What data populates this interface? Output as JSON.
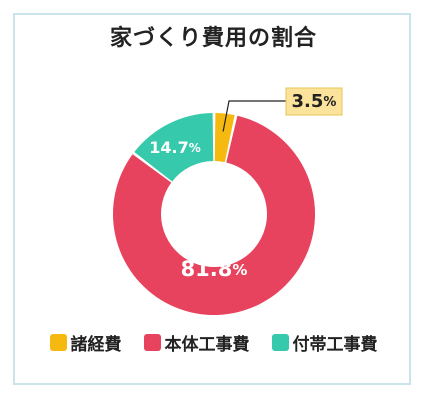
{
  "chart_data": {
    "type": "pie",
    "title": "家づくり費用の割合",
    "categories": [
      "諸経費",
      "本体工事費",
      "付帯工事費"
    ],
    "values": [
      3.5,
      81.8,
      14.7
    ],
    "labels": [
      "3.5",
      "81.8",
      "14.7"
    ],
    "unit": "%",
    "colors": [
      "#f5b90f",
      "#e8435e",
      "#37c9ab"
    ],
    "legend_position": "bottom",
    "style": "donut"
  }
}
